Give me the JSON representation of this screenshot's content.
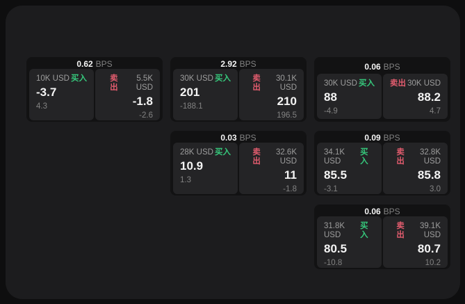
{
  "labels": {
    "bps_unit": "BPS",
    "buy": "买入",
    "sell": "卖出"
  },
  "colors": {
    "page_bg": "#0e0e0f",
    "panel_bg": "#1c1c1e",
    "card_bg": "#121213",
    "tile_bg": "#242426",
    "buy_green": "#36c97c",
    "sell_red": "#e25c6e"
  },
  "cards": [
    {
      "spread_bps": "0.62",
      "buy": {
        "size": "10K USD",
        "price": "-3.7",
        "sub": "4.3"
      },
      "sell": {
        "size": "5.5K USD",
        "price": "-1.8",
        "sub": "-2.6"
      }
    },
    {
      "spread_bps": "2.92",
      "buy": {
        "size": "30K USD",
        "price": "201",
        "sub": "-188.1"
      },
      "sell": {
        "size": "30.1K USD",
        "price": "210",
        "sub": "196.5"
      }
    },
    {
      "spread_bps": "0.06",
      "buy": {
        "size": "30K USD",
        "price": "88",
        "sub": "-4.9"
      },
      "sell": {
        "size": "30K USD",
        "price": "88.2",
        "sub": "4.7"
      }
    },
    {
      "spread_bps": "0.03",
      "buy": {
        "size": "28K USD",
        "price": "10.9",
        "sub": "1.3"
      },
      "sell": {
        "size": "32.6K USD",
        "price": "11",
        "sub": "-1.8"
      }
    },
    {
      "spread_bps": "0.09",
      "buy": {
        "size": "34.1K USD",
        "price": "85.5",
        "sub": "-3.1"
      },
      "sell": {
        "size": "32.8K USD",
        "price": "85.8",
        "sub": "3.0"
      }
    },
    {
      "spread_bps": "0.06",
      "buy": {
        "size": "31.8K USD",
        "price": "80.5",
        "sub": "-10.8"
      },
      "sell": {
        "size": "39.1K USD",
        "price": "80.7",
        "sub": "10.2"
      }
    }
  ]
}
